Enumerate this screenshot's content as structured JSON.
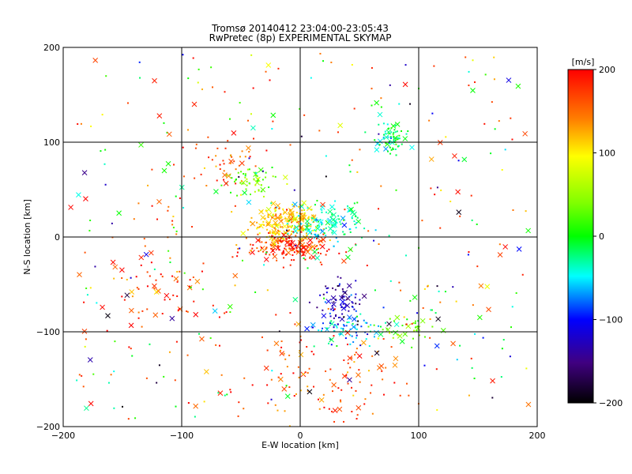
{
  "chart_data": {
    "type": "scatter",
    "title": "Tromsø 20140412 23:04:00-23:05:43",
    "subtitle": "RwPretec (8p) EXPERIMENTAL SKYMAP",
    "xlabel": "E-W location [km]",
    "ylabel": "N-S location [km]",
    "xlim": [
      -200,
      200
    ],
    "ylim": [
      -200,
      200
    ],
    "xticks": [
      -200,
      -100,
      0,
      100,
      200
    ],
    "yticks": [
      -200,
      -100,
      0,
      100,
      200
    ],
    "grid": true,
    "colorbar": {
      "label": "[m/s]",
      "range": [
        -200,
        200
      ],
      "ticks": [
        200,
        100,
        0,
        -100,
        -200
      ]
    },
    "marker_types": [
      "dot",
      "x"
    ],
    "clusters": [
      {
        "x": -10,
        "y": 15,
        "sx": 15,
        "sy": 10,
        "n": 220,
        "v": 120
      },
      {
        "x": -5,
        "y": -10,
        "sx": 20,
        "sy": 8,
        "n": 160,
        "v": 180
      },
      {
        "x": 25,
        "y": 15,
        "sx": 15,
        "sy": 12,
        "n": 110,
        "v": -30
      },
      {
        "x": -40,
        "y": 60,
        "sx": 12,
        "sy": 10,
        "n": 60,
        "v": 40
      },
      {
        "x": 75,
        "y": 105,
        "sx": 7,
        "sy": 8,
        "n": 70,
        "v": -20
      },
      {
        "x": 35,
        "y": -70,
        "sx": 10,
        "sy": 12,
        "n": 80,
        "v": -130
      },
      {
        "x": 40,
        "y": -95,
        "sx": 15,
        "sy": 8,
        "n": 70,
        "v": -60
      },
      {
        "x": 90,
        "y": -95,
        "sx": 15,
        "sy": 8,
        "n": 40,
        "v": 30
      },
      {
        "x": -120,
        "y": -50,
        "sx": 25,
        "sy": 20,
        "n": 60,
        "v": 180
      },
      {
        "x": 20,
        "y": -150,
        "sx": 40,
        "sy": 30,
        "n": 120,
        "v": 170
      },
      {
        "x": -65,
        "y": 80,
        "sx": 20,
        "sy": 15,
        "n": 45,
        "v": 170
      },
      {
        "x": 0,
        "y": 0,
        "sx": 100,
        "sy": 100,
        "n": 380,
        "v": "mixed"
      }
    ]
  }
}
